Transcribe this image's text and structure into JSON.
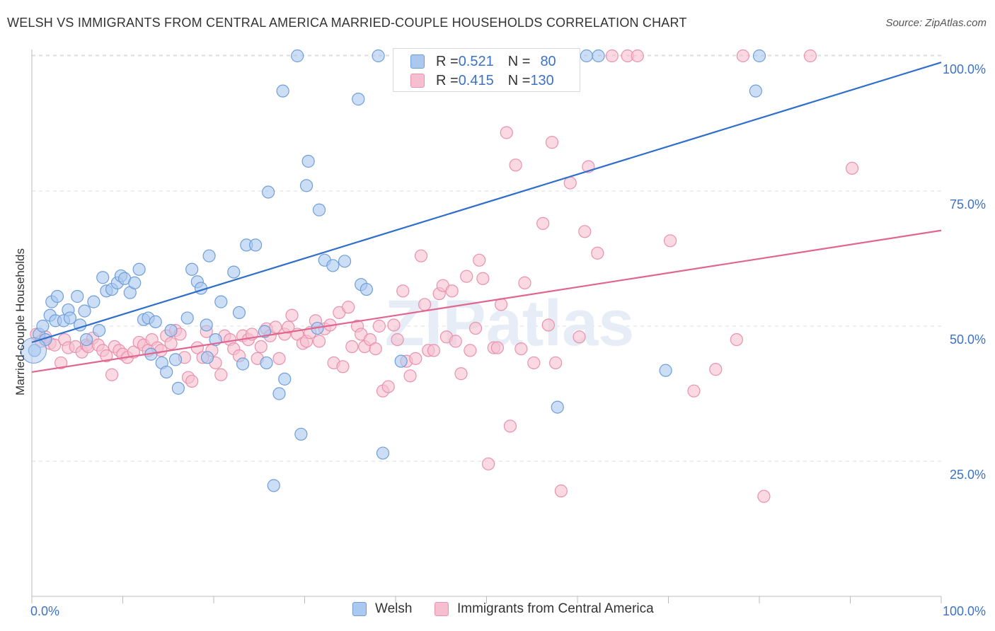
{
  "title": "WELSH VS IMMIGRANTS FROM CENTRAL AMERICA MARRIED-COUPLE HOUSEHOLDS CORRELATION CHART",
  "source": "Source: ZipAtlas.com",
  "watermark": "ZIPatlas",
  "colors": {
    "welsh_fill": "#aac8f0",
    "welsh_stroke": "#6f9fd8",
    "welsh_line": "#2f6fcb",
    "imm_fill": "#f6bfd0",
    "imm_stroke": "#e991ae",
    "imm_line": "#e0668f",
    "tick_label": "#3c72c8",
    "grid": "#dddddd"
  },
  "legend_top": {
    "rows": [
      {
        "r_label": "R = ",
        "r_value": "0.521",
        "n_label": "N = ",
        "n_value": "80"
      },
      {
        "r_label": "R = ",
        "r_value": "0.415",
        "n_label": "N = ",
        "n_value": "130"
      }
    ]
  },
  "legend_bottom": {
    "items": [
      "Welsh",
      "Immigrants from Central America"
    ]
  },
  "chart_data": {
    "type": "scatter",
    "title": "WELSH VS IMMIGRANTS FROM CENTRAL AMERICA MARRIED-COUPLE HOUSEHOLDS CORRELATION CHART",
    "xlabel": "",
    "ylabel": "Married-couple Households",
    "xlim": [
      0,
      100
    ],
    "ylim": [
      0,
      103
    ],
    "x_tick_labels": [
      "0.0%",
      "100.0%"
    ],
    "y_tick_labels": [
      "25.0%",
      "50.0%",
      "75.0%",
      "100.0%"
    ],
    "y_ticks": [
      25,
      50,
      75,
      100
    ],
    "grid": true,
    "legend_position": "top-center",
    "series": [
      {
        "name": "Welsh",
        "r": 0.521,
        "n": 80,
        "trend": {
          "x0": 0,
          "y0": 47.0,
          "x1": 100,
          "y1": 98.8
        },
        "points": [
          [
            0.3,
            45.5
          ],
          [
            0.8,
            48.5
          ],
          [
            1.2,
            50
          ],
          [
            1.5,
            47.5
          ],
          [
            2,
            52
          ],
          [
            2.2,
            54.5
          ],
          [
            2.6,
            51
          ],
          [
            2.8,
            55.5
          ],
          [
            3.5,
            51
          ],
          [
            4,
            53
          ],
          [
            4.2,
            51.5
          ],
          [
            5,
            55.5
          ],
          [
            5.3,
            50.2
          ],
          [
            5.8,
            52.8
          ],
          [
            6,
            47.5
          ],
          [
            6.8,
            54.5
          ],
          [
            7.4,
            49.2
          ],
          [
            7.8,
            59
          ],
          [
            8.2,
            56.5
          ],
          [
            8.8,
            56.8
          ],
          [
            9.4,
            58
          ],
          [
            9.8,
            59.3
          ],
          [
            10.2,
            58.8
          ],
          [
            10.8,
            56.2
          ],
          [
            11.3,
            58
          ],
          [
            11.8,
            60.5
          ],
          [
            12.3,
            51.2
          ],
          [
            12.8,
            51.5
          ],
          [
            13.1,
            44.8
          ],
          [
            13.6,
            50.8
          ],
          [
            14.3,
            43.2
          ],
          [
            14.8,
            41.5
          ],
          [
            15.3,
            49.2
          ],
          [
            15.8,
            43.8
          ],
          [
            16.1,
            38.5
          ],
          [
            17.1,
            51.5
          ],
          [
            17.6,
            60.5
          ],
          [
            18.2,
            58.2
          ],
          [
            18.6,
            57
          ],
          [
            19.2,
            50.2
          ],
          [
            19.3,
            44.2
          ],
          [
            19.5,
            63
          ],
          [
            20.2,
            47.5
          ],
          [
            20.8,
            54.5
          ],
          [
            22.2,
            60
          ],
          [
            22.8,
            52.5
          ],
          [
            23.2,
            43
          ],
          [
            23.6,
            65
          ],
          [
            24.6,
            65
          ],
          [
            25.6,
            49
          ],
          [
            25.8,
            43.2
          ],
          [
            26,
            74.8
          ],
          [
            27.2,
            37.5
          ],
          [
            27.6,
            93.5
          ],
          [
            27.8,
            40.2
          ],
          [
            26.6,
            20.5
          ],
          [
            29.2,
            100
          ],
          [
            29.6,
            30
          ],
          [
            30.2,
            76
          ],
          [
            30.4,
            80.5
          ],
          [
            31.6,
            71.5
          ],
          [
            31.4,
            49.6
          ],
          [
            32.2,
            62.2
          ],
          [
            33.1,
            61.2
          ],
          [
            34.4,
            62
          ],
          [
            36.2,
            57.7
          ],
          [
            36.8,
            56.8
          ],
          [
            35.9,
            92
          ],
          [
            38.1,
            100
          ],
          [
            38.6,
            26.5
          ],
          [
            40.6,
            43.5
          ],
          [
            47.6,
            100
          ],
          [
            50.3,
            100
          ],
          [
            56.3,
            100
          ],
          [
            57.8,
            35
          ],
          [
            61,
            100
          ],
          [
            62.3,
            100
          ],
          [
            69.7,
            41.8
          ],
          [
            79.6,
            93.5
          ],
          [
            80,
            100
          ]
        ]
      },
      {
        "name": "Immigrants from Central America",
        "r": 0.415,
        "n": 130,
        "trend": {
          "x0": 0,
          "y0": 41.5,
          "x1": 100,
          "y1": 67.7
        },
        "points": [
          [
            0.5,
            48.5
          ],
          [
            1,
            47.2
          ],
          [
            1.5,
            48
          ],
          [
            2,
            46.8
          ],
          [
            2.5,
            46.5
          ],
          [
            3.2,
            43.2
          ],
          [
            3.6,
            47.5
          ],
          [
            4,
            46
          ],
          [
            4.8,
            46.2
          ],
          [
            5.5,
            45.2
          ],
          [
            6,
            46.5
          ],
          [
            6.2,
            46.2
          ],
          [
            6.7,
            47.8
          ],
          [
            7.3,
            46.5
          ],
          [
            7.8,
            45.5
          ],
          [
            8.2,
            44.5
          ],
          [
            8.8,
            41
          ],
          [
            9.1,
            46.2
          ],
          [
            9.6,
            45.5
          ],
          [
            10,
            44.8
          ],
          [
            10.5,
            44.2
          ],
          [
            11.2,
            45.2
          ],
          [
            11.8,
            47
          ],
          [
            12.3,
            46.5
          ],
          [
            12.8,
            45.5
          ],
          [
            13.2,
            47.5
          ],
          [
            13.8,
            46
          ],
          [
            14.2,
            45.5
          ],
          [
            14.8,
            48.2
          ],
          [
            15.3,
            46.8
          ],
          [
            15.8,
            49.2
          ],
          [
            16.3,
            48.5
          ],
          [
            16.8,
            44.2
          ],
          [
            17.2,
            40.5
          ],
          [
            17.6,
            39.8
          ],
          [
            18.2,
            46
          ],
          [
            18.8,
            44.2
          ],
          [
            19.2,
            49
          ],
          [
            19.8,
            45.5
          ],
          [
            20.2,
            43.2
          ],
          [
            20.8,
            41
          ],
          [
            21.2,
            48.2
          ],
          [
            21.8,
            47.5
          ],
          [
            22.2,
            45.8
          ],
          [
            22.8,
            44.5
          ],
          [
            23.2,
            48.2
          ],
          [
            23.8,
            47.5
          ],
          [
            24.2,
            48.5
          ],
          [
            24.8,
            44
          ],
          [
            25.2,
            46.2
          ],
          [
            25.8,
            49.5
          ],
          [
            26.2,
            48.2
          ],
          [
            26.8,
            49.8
          ],
          [
            27.2,
            44
          ],
          [
            27.8,
            48.5
          ],
          [
            28.2,
            49.8
          ],
          [
            28.6,
            52
          ],
          [
            29.2,
            48.5
          ],
          [
            29.8,
            46.8
          ],
          [
            30.2,
            47.2
          ],
          [
            30.6,
            48.8
          ],
          [
            31.2,
            51
          ],
          [
            31.6,
            47.2
          ],
          [
            32.2,
            49.5
          ],
          [
            32.8,
            50.2
          ],
          [
            33.2,
            43.2
          ],
          [
            33.8,
            52.5
          ],
          [
            34.2,
            42.5
          ],
          [
            34.8,
            53.5
          ],
          [
            35.2,
            46.2
          ],
          [
            35.8,
            50
          ],
          [
            36.2,
            48.5
          ],
          [
            36.6,
            46.2
          ],
          [
            37.2,
            47.5
          ],
          [
            37.8,
            45.8
          ],
          [
            38.2,
            50
          ],
          [
            38.6,
            38
          ],
          [
            39.2,
            38.8
          ],
          [
            39.8,
            50.2
          ],
          [
            40.2,
            47.5
          ],
          [
            40.8,
            56.5
          ],
          [
            41.2,
            43.5
          ],
          [
            41.6,
            40.8
          ],
          [
            42.2,
            44
          ],
          [
            42.8,
            63
          ],
          [
            43.2,
            54
          ],
          [
            43.6,
            45.5
          ],
          [
            44.2,
            45.5
          ],
          [
            44.8,
            56
          ],
          [
            45.2,
            57.5
          ],
          [
            45.6,
            48
          ],
          [
            46.2,
            56.5
          ],
          [
            46.6,
            47.2
          ],
          [
            47.2,
            41.2
          ],
          [
            47.8,
            59.2
          ],
          [
            48.2,
            45.5
          ],
          [
            48.8,
            49.6
          ],
          [
            49.2,
            62.2
          ],
          [
            49.6,
            58.8
          ],
          [
            50.2,
            24.5
          ],
          [
            50.8,
            46
          ],
          [
            51.2,
            46
          ],
          [
            51.6,
            54
          ],
          [
            52.2,
            85.8
          ],
          [
            52.6,
            31.5
          ],
          [
            53.2,
            79.8
          ],
          [
            53.8,
            45.8
          ],
          [
            54.2,
            58
          ],
          [
            55.2,
            43.2
          ],
          [
            56.2,
            69
          ],
          [
            56.8,
            50.2
          ],
          [
            57.2,
            84
          ],
          [
            57.6,
            43.2
          ],
          [
            58.2,
            19.5
          ],
          [
            59.2,
            76.5
          ],
          [
            60.2,
            48
          ],
          [
            60.8,
            67.5
          ],
          [
            61.2,
            79.5
          ],
          [
            62.2,
            63.5
          ],
          [
            63.8,
            100
          ],
          [
            65.5,
            100
          ],
          [
            70.2,
            65.8
          ],
          [
            72.8,
            38
          ],
          [
            75.2,
            42
          ],
          [
            77.5,
            47.5
          ],
          [
            78.2,
            100
          ],
          [
            80.5,
            18.5
          ],
          [
            90.2,
            79.2
          ],
          [
            85.6,
            100
          ],
          [
            66.6,
            100
          ]
        ]
      }
    ]
  }
}
